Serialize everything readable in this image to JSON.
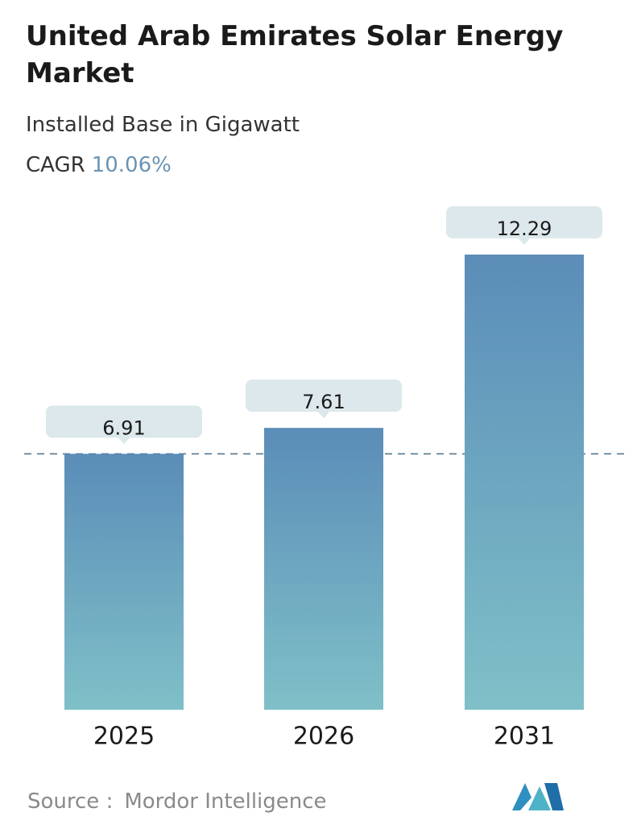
{
  "chart_data": {
    "type": "bar",
    "title": "United Arab Emirates Solar Energy Market",
    "subtitle": "Installed Base in Gigawatt",
    "cagr_label": "CAGR",
    "cagr_value": "10.06%",
    "categories": [
      "2025",
      "2026",
      "2031"
    ],
    "values": [
      6.91,
      7.61,
      12.29
    ],
    "color": "#5b8db8",
    "color_bottom": "#7fc0c8",
    "source_label": "Source :",
    "source": "Mordor Intelligence"
  }
}
